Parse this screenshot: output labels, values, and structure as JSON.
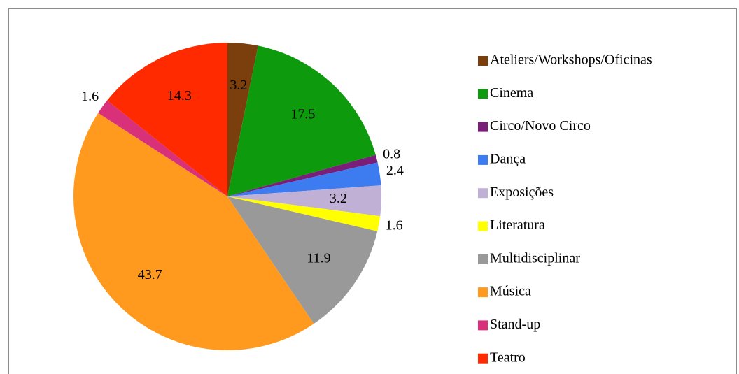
{
  "chart_data": {
    "type": "pie",
    "categories": [
      "Ateliers/Workshops/Oficinas",
      "Cinema",
      "Circo/Novo Circo",
      "Dança",
      "Exposições",
      "Literatura",
      "Multidisciplinar",
      "Música",
      "Stand-up",
      "Teatro"
    ],
    "values": [
      3.2,
      17.5,
      0.8,
      2.4,
      3.2,
      1.6,
      11.9,
      43.7,
      1.6,
      14.3
    ],
    "colors": [
      "#7b3f0e",
      "#0d9a0d",
      "#7a1e7a",
      "#3d7bf0",
      "#c0b0d5",
      "#ffff00",
      "#999999",
      "#ff9a1f",
      "#d9307a",
      "#ff2a00"
    ],
    "legend": "right"
  }
}
